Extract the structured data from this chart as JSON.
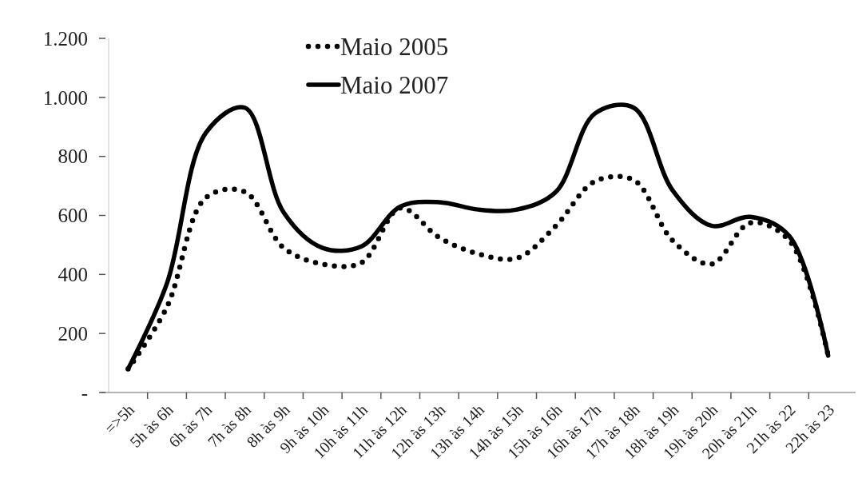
{
  "chart_data": {
    "type": "line",
    "categories": [
      "=>5h",
      "5h às 6h",
      "6h às 7h",
      "7h às 8h",
      "8h às 9h",
      "9h às 10h",
      "10h às 11h",
      "11h às 12h",
      "12h às 13h",
      "13h às 14h",
      "14h às 15h",
      "15h às 16h",
      "16h às 17h",
      "17h às 18h",
      "18h às 19h",
      "19h às 20h",
      "20h às 21h",
      "21h às 22",
      "22h às 23"
    ],
    "series": [
      {
        "name": "Maio 2005",
        "color": "#000000",
        "line_style": "dotted",
        "values": [
          80,
          290,
          660,
          680,
          490,
          435,
          440,
          625,
          525,
          470,
          455,
          565,
          715,
          720,
          515,
          435,
          575,
          515,
          125
        ]
      },
      {
        "name": "Maio 2007",
        "color": "#000000",
        "line_style": "solid",
        "values": [
          80,
          370,
          880,
          965,
          610,
          490,
          495,
          630,
          645,
          620,
          620,
          680,
          945,
          965,
          685,
          565,
          595,
          530,
          125
        ]
      }
    ],
    "ylim": [
      0,
      1200
    ],
    "yticks": [
      {
        "value": 0,
        "label": "-"
      },
      200,
      400,
      600,
      800,
      {
        "value": 1000,
        "label": "1.000"
      },
      {
        "value": 1200,
        "label": "1.200"
      }
    ],
    "legend": "top",
    "grid": false,
    "marker": "none"
  }
}
